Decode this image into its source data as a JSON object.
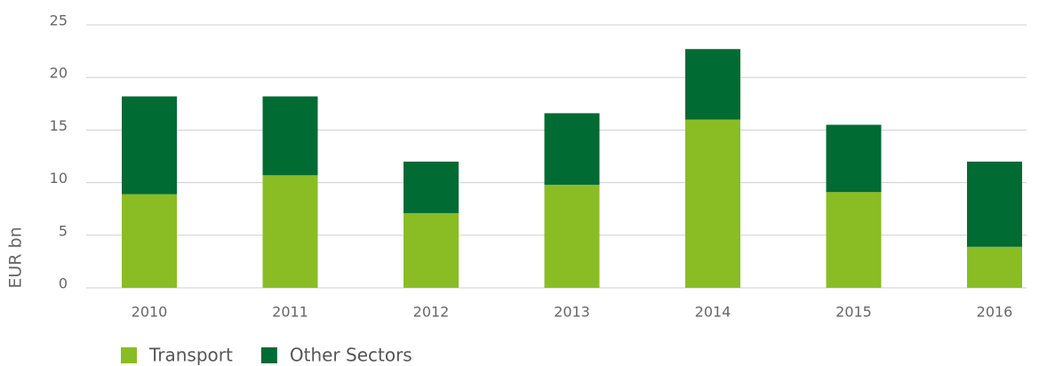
{
  "chart_data": {
    "type": "stacked_bar",
    "categories": [
      "2010",
      "2011",
      "2012",
      "2013",
      "2014",
      "2015",
      "2016"
    ],
    "series": [
      {
        "name": "Transport",
        "color": "#8abd24",
        "values": [
          8.9,
          10.7,
          7.1,
          9.8,
          16.0,
          9.1,
          3.9
        ]
      },
      {
        "name": "Other Sectors",
        "color": "#006b33",
        "values": [
          9.3,
          7.5,
          4.9,
          6.8,
          6.7,
          6.4,
          8.1
        ]
      }
    ],
    "y_label": "EUR bn",
    "ylim": [
      0,
      25
    ],
    "yticks": [
      0,
      5,
      10,
      15,
      20,
      25
    ],
    "grid": true
  }
}
